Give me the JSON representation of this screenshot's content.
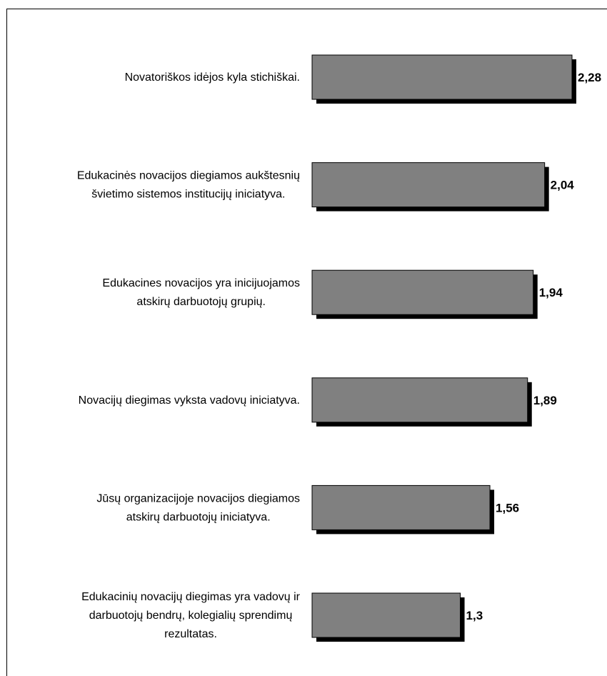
{
  "chart_data": {
    "type": "bar",
    "orientation": "horizontal",
    "categories": [
      [
        "Novatoriškos idėjos kyla stichiškai."
      ],
      [
        "Edukacinės novacijos diegiamos aukštesnių",
        "švietimo sistemos institucijų iniciatyva."
      ],
      [
        "Edukacines novacijos yra inicijuojamos",
        "atskirų darbuotojų grupių."
      ],
      [
        "Novacijų diegimas vyksta vadovų iniciatyva."
      ],
      [
        "Jūsų organizacijoje novacijos diegiamos",
        "atskirų darbuotojų iniciatyva."
      ],
      [
        "Edukacinių novacijų diegimas yra vadovų ir",
        "darbuotojų bendrų, kolegialių sprendimų",
        "rezultatas."
      ]
    ],
    "values": [
      2.28,
      2.04,
      1.94,
      1.89,
      1.56,
      1.3
    ],
    "value_labels": [
      "2,28",
      "2,04",
      "1,94",
      "1,89",
      "1,56",
      "1,3"
    ],
    "xlim": [
      0,
      2.28
    ],
    "grid": false,
    "legend": "none",
    "colors": {
      "bar_fill": "#808080",
      "bar_stroke": "#000000",
      "bar_shadow": "#000000"
    }
  }
}
